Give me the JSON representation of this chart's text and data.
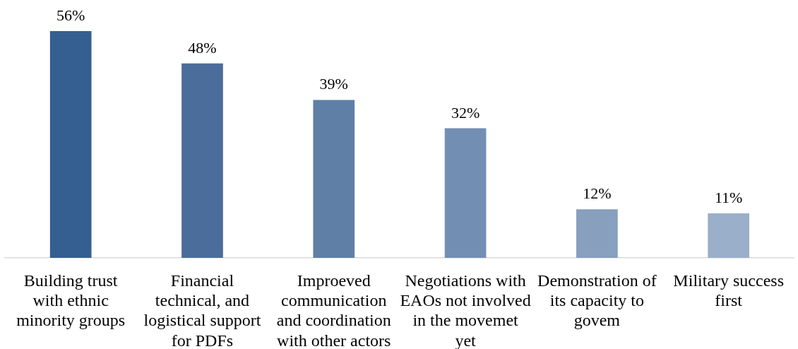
{
  "chart_data": {
    "type": "bar",
    "categories": [
      "Building trust\nwith ethnic\nminority groups",
      "Financial\ntechnical, and\nlogistical support\nfor PDFs",
      "Improeved\ncommunication\nand coordination\nwith other actors",
      "Negotiations with\nEAOs not involved\nin the movemet\nyet",
      "Demonstration of\nits capacity to\ngovem",
      "Military success\nfirst"
    ],
    "values": [
      56,
      48,
      39,
      32,
      12,
      11
    ],
    "colors": [
      "#365f91",
      "#4a6d9b",
      "#5f7fa6",
      "#728fb3",
      "#889fbe",
      "#9aafca"
    ],
    "value_labels": [
      "56%",
      "48%",
      "39%",
      "32%",
      "12%",
      "11%"
    ]
  }
}
